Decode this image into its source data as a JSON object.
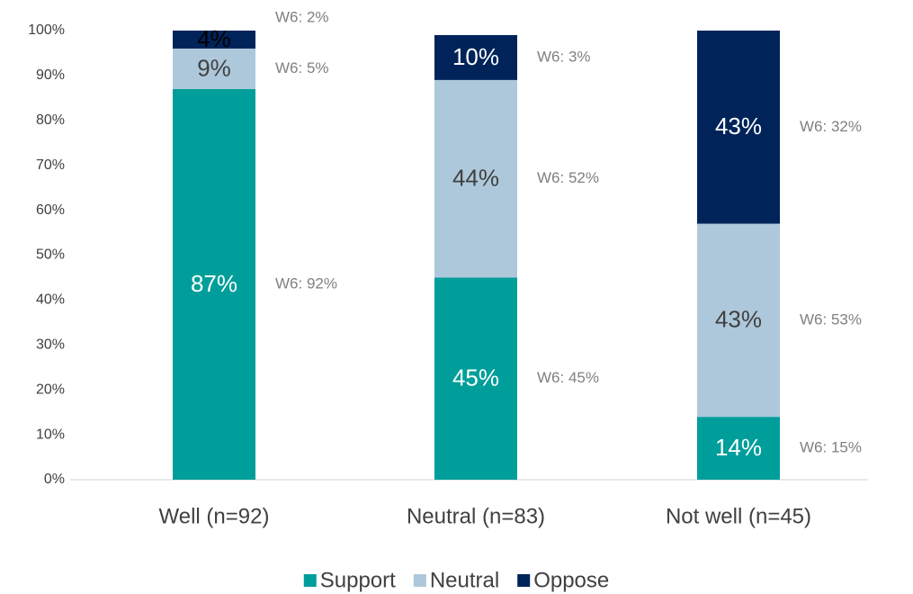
{
  "chart_data": {
    "type": "stacked_bar",
    "categories": [
      "Well (n=92)",
      "Neutral (n=83)",
      "Not well (n=45)"
    ],
    "series": [
      {
        "name": "Support",
        "color": "#009e9a",
        "values": [
          87,
          45,
          14
        ],
        "value_labels": [
          "87%",
          "45%",
          "14%"
        ],
        "annotations": [
          "W6: 92%",
          "W6: 45%",
          "W6: 15%"
        ]
      },
      {
        "name": "Neutral",
        "color": "#aec8db",
        "values": [
          9,
          44,
          43
        ],
        "value_labels": [
          "9%",
          "44%",
          "43%"
        ],
        "annotations": [
          "W6: 5%",
          "W6: 52%",
          "W6: 53%"
        ]
      },
      {
        "name": "Oppose",
        "color": "#00245a",
        "values": [
          4,
          10,
          43
        ],
        "value_labels": [
          "4%",
          "10%",
          "43%"
        ],
        "annotations": [
          "W6: 2%",
          "W6: 3%",
          "W6: 32%"
        ]
      }
    ],
    "ylim": [
      0,
      100
    ],
    "yticks": [
      {
        "value": 0,
        "label": "0%"
      },
      {
        "value": 10,
        "label": "10%"
      },
      {
        "value": 20,
        "label": "20%"
      },
      {
        "value": 30,
        "label": "30%"
      },
      {
        "value": 40,
        "label": "40%"
      },
      {
        "value": 50,
        "label": "50%"
      },
      {
        "value": 60,
        "label": "60%"
      },
      {
        "value": 70,
        "label": "70%"
      },
      {
        "value": 80,
        "label": "80%"
      },
      {
        "value": 90,
        "label": "90%"
      },
      {
        "value": 100,
        "label": "100%"
      }
    ],
    "legend": "bottom"
  }
}
